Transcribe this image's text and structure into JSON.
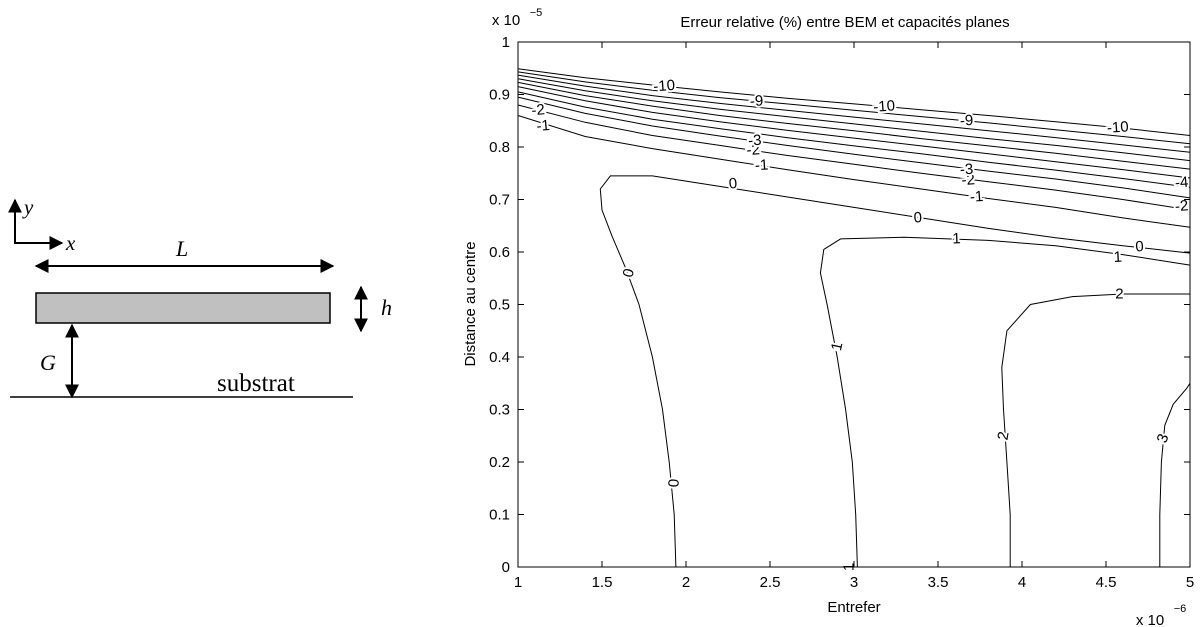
{
  "diagram": {
    "y_label": "y",
    "x_label": "x",
    "length_label": "L",
    "height_label": "h",
    "gap_label": "G",
    "substrate_label": "substrat"
  },
  "chart_data": {
    "type": "contour",
    "title": "Erreur relative (%) entre BEM et capacités planes",
    "xlabel": "Entrefer",
    "ylabel": "Distance au centre",
    "x_scale_label": "x 10",
    "x_scale_exp": "−6",
    "y_scale_label": "x 10",
    "y_scale_exp": "−5",
    "xlim": [
      1,
      5
    ],
    "ylim": [
      0,
      1
    ],
    "x_ticks": [
      1,
      1.5,
      2,
      2.5,
      3,
      3.5,
      4,
      4.5,
      5
    ],
    "x_tick_labels": [
      "1",
      "1.5",
      "2",
      "2.5",
      "3",
      "3.5",
      "4",
      "4.5",
      "5"
    ],
    "y_ticks": [
      0,
      0.1,
      0.2,
      0.3,
      0.4,
      0.5,
      0.6,
      0.7,
      0.8,
      0.9,
      1
    ],
    "y_tick_labels": [
      "0",
      "0.1",
      "0.2",
      "0.3",
      "0.4",
      "0.5",
      "0.6",
      "0.7",
      "0.8",
      "0.9",
      "1"
    ],
    "line_color": "#000000",
    "contours": [
      {
        "level": "0",
        "points": [
          [
            1.94,
            0
          ],
          [
            1.93,
            0.1
          ],
          [
            1.9,
            0.2
          ],
          [
            1.86,
            0.3
          ],
          [
            1.8,
            0.4
          ],
          [
            1.72,
            0.5
          ],
          [
            1.64,
            0.57
          ],
          [
            1.56,
            0.63
          ],
          [
            1.5,
            0.68
          ],
          [
            1.49,
            0.72
          ],
          [
            1.55,
            0.745
          ],
          [
            1.8,
            0.745
          ],
          [
            2.2,
            0.725
          ],
          [
            2.6,
            0.705
          ],
          [
            3.0,
            0.685
          ],
          [
            3.4,
            0.665
          ],
          [
            3.8,
            0.645
          ],
          [
            4.2,
            0.627
          ],
          [
            4.6,
            0.612
          ],
          [
            5.0,
            0.598
          ]
        ]
      },
      {
        "level": "1",
        "points": [
          [
            3.02,
            0
          ],
          [
            3.01,
            0.1
          ],
          [
            2.99,
            0.2
          ],
          [
            2.95,
            0.3
          ],
          [
            2.9,
            0.4
          ],
          [
            2.84,
            0.5
          ],
          [
            2.8,
            0.56
          ],
          [
            2.82,
            0.605
          ],
          [
            2.92,
            0.625
          ],
          [
            3.3,
            0.628
          ],
          [
            3.8,
            0.622
          ],
          [
            4.2,
            0.612
          ],
          [
            4.6,
            0.595
          ],
          [
            5.0,
            0.575
          ]
        ]
      },
      {
        "level": "2",
        "points": [
          [
            3.93,
            0
          ],
          [
            3.93,
            0.1
          ],
          [
            3.91,
            0.2
          ],
          [
            3.89,
            0.3
          ],
          [
            3.88,
            0.38
          ],
          [
            3.91,
            0.45
          ],
          [
            4.05,
            0.5
          ],
          [
            4.3,
            0.515
          ],
          [
            4.6,
            0.52
          ],
          [
            5.0,
            0.52
          ]
        ]
      },
      {
        "level": "3",
        "points": [
          [
            4.82,
            0
          ],
          [
            4.82,
            0.1
          ],
          [
            4.83,
            0.2
          ],
          [
            4.85,
            0.27
          ],
          [
            4.9,
            0.31
          ],
          [
            4.98,
            0.34
          ],
          [
            5.0,
            0.35
          ]
        ]
      },
      {
        "level": "-1",
        "points": [
          [
            1.0,
            0.86
          ],
          [
            1.4,
            0.82
          ],
          [
            1.8,
            0.797
          ],
          [
            2.2,
            0.777
          ],
          [
            2.6,
            0.757
          ],
          [
            3.0,
            0.738
          ],
          [
            3.4,
            0.72
          ],
          [
            3.8,
            0.702
          ],
          [
            4.2,
            0.685
          ],
          [
            4.6,
            0.665
          ],
          [
            5.0,
            0.647
          ]
        ]
      },
      {
        "level": "-2",
        "points": [
          [
            1.0,
            0.88
          ],
          [
            1.4,
            0.847
          ],
          [
            1.8,
            0.822
          ],
          [
            2.2,
            0.803
          ],
          [
            2.6,
            0.784
          ],
          [
            3.0,
            0.767
          ],
          [
            3.4,
            0.75
          ],
          [
            3.8,
            0.734
          ],
          [
            4.2,
            0.718
          ],
          [
            4.6,
            0.7
          ],
          [
            5.0,
            0.68
          ]
        ]
      },
      {
        "level": "-3",
        "points": [
          [
            1.0,
            0.895
          ],
          [
            1.4,
            0.864
          ],
          [
            1.8,
            0.84
          ],
          [
            2.2,
            0.821
          ],
          [
            2.6,
            0.803
          ],
          [
            3.0,
            0.786
          ],
          [
            3.4,
            0.77
          ],
          [
            3.8,
            0.754
          ],
          [
            4.2,
            0.739
          ],
          [
            4.6,
            0.722
          ],
          [
            5.0,
            0.703
          ]
        ]
      },
      {
        "level": "-4",
        "points": [
          [
            1.0,
            0.905
          ],
          [
            1.4,
            0.876
          ],
          [
            1.8,
            0.853
          ],
          [
            2.2,
            0.835
          ],
          [
            2.6,
            0.818
          ],
          [
            3.0,
            0.802
          ],
          [
            3.4,
            0.787
          ],
          [
            3.8,
            0.771
          ],
          [
            4.2,
            0.756
          ],
          [
            4.6,
            0.74
          ],
          [
            5.0,
            0.723
          ]
        ]
      },
      {
        "level": "-5",
        "points": [
          [
            1.0,
            0.915
          ],
          [
            1.4,
            0.888
          ],
          [
            1.8,
            0.866
          ],
          [
            2.2,
            0.848
          ],
          [
            2.6,
            0.832
          ],
          [
            3.0,
            0.817
          ],
          [
            3.4,
            0.802
          ],
          [
            3.8,
            0.787
          ],
          [
            4.2,
            0.772
          ],
          [
            4.6,
            0.757
          ],
          [
            5.0,
            0.741
          ]
        ]
      },
      {
        "level": "-6",
        "points": [
          [
            1.0,
            0.923
          ],
          [
            1.4,
            0.898
          ],
          [
            1.8,
            0.878
          ],
          [
            2.2,
            0.86
          ],
          [
            2.6,
            0.845
          ],
          [
            3.0,
            0.831
          ],
          [
            3.4,
            0.816
          ],
          [
            3.8,
            0.802
          ],
          [
            4.2,
            0.788
          ],
          [
            4.6,
            0.773
          ],
          [
            5.0,
            0.758
          ]
        ]
      },
      {
        "level": "-7",
        "points": [
          [
            1.0,
            0.93
          ],
          [
            1.4,
            0.907
          ],
          [
            1.8,
            0.888
          ],
          [
            2.2,
            0.872
          ],
          [
            2.6,
            0.858
          ],
          [
            3.0,
            0.844
          ],
          [
            3.4,
            0.83
          ],
          [
            3.8,
            0.816
          ],
          [
            4.2,
            0.803
          ],
          [
            4.6,
            0.789
          ],
          [
            5.0,
            0.774
          ]
        ]
      },
      {
        "level": "-8",
        "points": [
          [
            1.0,
            0.937
          ],
          [
            1.4,
            0.916
          ],
          [
            1.8,
            0.898
          ],
          [
            2.2,
            0.883
          ],
          [
            2.6,
            0.87
          ],
          [
            3.0,
            0.857
          ],
          [
            3.4,
            0.844
          ],
          [
            3.8,
            0.831
          ],
          [
            4.2,
            0.818
          ],
          [
            4.6,
            0.804
          ],
          [
            5.0,
            0.79
          ]
        ]
      },
      {
        "level": "-9",
        "points": [
          [
            1.0,
            0.943
          ],
          [
            1.4,
            0.924
          ],
          [
            1.8,
            0.908
          ],
          [
            2.2,
            0.894
          ],
          [
            2.6,
            0.882
          ],
          [
            3.0,
            0.87
          ],
          [
            3.4,
            0.858
          ],
          [
            3.8,
            0.846
          ],
          [
            4.2,
            0.833
          ],
          [
            4.6,
            0.82
          ],
          [
            5.0,
            0.806
          ]
        ]
      },
      {
        "level": "-10",
        "points": [
          [
            1.0,
            0.949
          ],
          [
            1.4,
            0.932
          ],
          [
            1.8,
            0.918
          ],
          [
            2.2,
            0.905
          ],
          [
            2.6,
            0.893
          ],
          [
            3.0,
            0.882
          ],
          [
            3.4,
            0.871
          ],
          [
            3.8,
            0.86
          ],
          [
            4.2,
            0.848
          ],
          [
            4.6,
            0.836
          ],
          [
            5.0,
            0.822
          ]
        ]
      }
    ],
    "contour_labels": [
      {
        "text": "0",
        "x": 1.66,
        "y": 0.56,
        "rotation": -75
      },
      {
        "text": "0",
        "x": 1.93,
        "y": 0.16,
        "rotation": -88
      },
      {
        "text": "0",
        "x": 2.28,
        "y": 0.73,
        "rotation": -5
      },
      {
        "text": "0",
        "x": 3.38,
        "y": 0.665,
        "rotation": -4
      },
      {
        "text": "0",
        "x": 4.7,
        "y": 0.61,
        "rotation": -3
      },
      {
        "text": "1",
        "x": 2.97,
        "y": 0.0,
        "rotation": -90
      },
      {
        "text": "1",
        "x": 2.9,
        "y": 0.42,
        "rotation": -78
      },
      {
        "text": "1",
        "x": 3.61,
        "y": 0.625,
        "rotation": -2
      },
      {
        "text": "1",
        "x": 4.57,
        "y": 0.59,
        "rotation": -3
      },
      {
        "text": "2",
        "x": 3.89,
        "y": 0.25,
        "rotation": -80
      },
      {
        "text": "2",
        "x": 4.58,
        "y": 0.52,
        "rotation": 0
      },
      {
        "text": "3",
        "x": 4.84,
        "y": 0.245,
        "rotation": -70
      },
      {
        "text": "-1",
        "x": 1.15,
        "y": 0.84,
        "rotation": -5
      },
      {
        "text": "-2",
        "x": 1.12,
        "y": 0.87,
        "rotation": -5
      },
      {
        "text": "-10",
        "x": 1.87,
        "y": 0.916,
        "rotation": -4
      },
      {
        "text": "-1",
        "x": 2.45,
        "y": 0.765,
        "rotation": -4
      },
      {
        "text": "-2",
        "x": 2.4,
        "y": 0.794,
        "rotation": -4
      },
      {
        "text": "-3",
        "x": 2.41,
        "y": 0.812,
        "rotation": -4
      },
      {
        "text": "-9",
        "x": 2.42,
        "y": 0.887,
        "rotation": -4
      },
      {
        "text": "-10",
        "x": 3.18,
        "y": 0.877,
        "rotation": -4
      },
      {
        "text": "-1",
        "x": 3.73,
        "y": 0.705,
        "rotation": -4
      },
      {
        "text": "-2",
        "x": 3.68,
        "y": 0.737,
        "rotation": -4
      },
      {
        "text": "-3",
        "x": 3.67,
        "y": 0.757,
        "rotation": -4
      },
      {
        "text": "-9",
        "x": 3.67,
        "y": 0.85,
        "rotation": -4
      },
      {
        "text": "-10",
        "x": 4.57,
        "y": 0.837,
        "rotation": -4
      },
      {
        "text": "-4",
        "x": 4.95,
        "y": 0.732,
        "rotation": -5
      },
      {
        "text": "-2",
        "x": 4.95,
        "y": 0.687,
        "rotation": -5
      }
    ]
  }
}
